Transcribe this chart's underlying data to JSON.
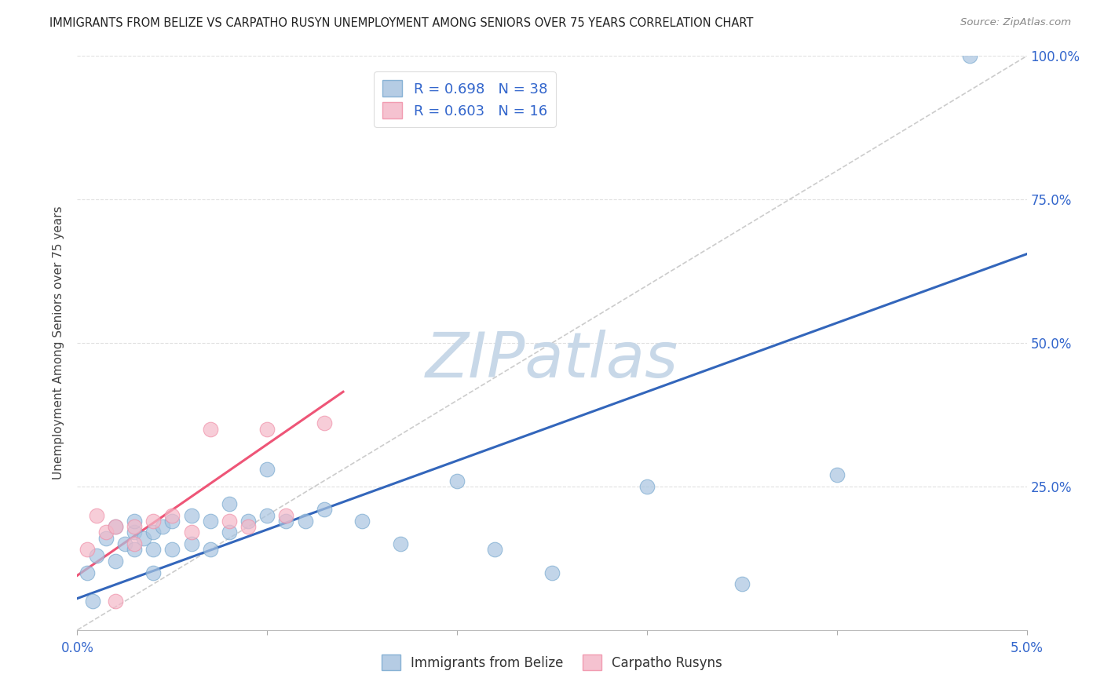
{
  "title": "IMMIGRANTS FROM BELIZE VS CARPATHO RUSYN UNEMPLOYMENT AMONG SENIORS OVER 75 YEARS CORRELATION CHART",
  "source": "Source: ZipAtlas.com",
  "ylabel": "Unemployment Among Seniors over 75 years",
  "xlim": [
    0,
    0.05
  ],
  "ylim": [
    0,
    1.0
  ],
  "xticks": [
    0.0,
    0.01,
    0.02,
    0.03,
    0.04,
    0.05
  ],
  "xtick_labels": [
    "0.0%",
    "",
    "",
    "",
    "",
    "5.0%"
  ],
  "ytick_labels": [
    "",
    "25.0%",
    "50.0%",
    "75.0%",
    "100.0%"
  ],
  "yticks": [
    0.0,
    0.25,
    0.5,
    0.75,
    1.0
  ],
  "legend_label1": "Immigrants from Belize",
  "legend_label2": "Carpatho Rusyns",
  "blue_fill": "#A8C4E0",
  "pink_fill": "#F4B8C8",
  "blue_edge": "#7AAAD0",
  "pink_edge": "#F090A8",
  "blue_line_color": "#3366BB",
  "pink_line_color": "#EE5577",
  "diagonal_color": "#CCCCCC",
  "watermark": "ZIPatlas",
  "watermark_color": "#C8D8E8",
  "blue_dots_x": [
    0.0005,
    0.001,
    0.0015,
    0.002,
    0.002,
    0.0025,
    0.003,
    0.003,
    0.003,
    0.0035,
    0.004,
    0.004,
    0.004,
    0.0045,
    0.005,
    0.005,
    0.006,
    0.006,
    0.007,
    0.007,
    0.008,
    0.008,
    0.009,
    0.01,
    0.01,
    0.011,
    0.012,
    0.013,
    0.015,
    0.017,
    0.02,
    0.022,
    0.025,
    0.03,
    0.035,
    0.04,
    0.047,
    0.0008
  ],
  "blue_dots_y": [
    0.1,
    0.13,
    0.16,
    0.18,
    0.12,
    0.15,
    0.17,
    0.19,
    0.14,
    0.16,
    0.17,
    0.14,
    0.1,
    0.18,
    0.19,
    0.14,
    0.2,
    0.15,
    0.19,
    0.14,
    0.22,
    0.17,
    0.19,
    0.28,
    0.2,
    0.19,
    0.19,
    0.21,
    0.19,
    0.15,
    0.26,
    0.14,
    0.1,
    0.25,
    0.08,
    0.27,
    1.0,
    0.05
  ],
  "pink_dots_x": [
    0.0005,
    0.001,
    0.0015,
    0.002,
    0.003,
    0.003,
    0.004,
    0.005,
    0.006,
    0.007,
    0.008,
    0.009,
    0.01,
    0.011,
    0.013,
    0.002
  ],
  "pink_dots_y": [
    0.14,
    0.2,
    0.17,
    0.18,
    0.18,
    0.15,
    0.19,
    0.2,
    0.17,
    0.35,
    0.19,
    0.18,
    0.35,
    0.2,
    0.36,
    0.05
  ],
  "blue_line_x": [
    0.0,
    0.05
  ],
  "blue_line_y": [
    0.055,
    0.655
  ],
  "pink_line_x": [
    0.0,
    0.014
  ],
  "pink_line_y": [
    0.095,
    0.415
  ],
  "diag_line_x": [
    0.0,
    0.05
  ],
  "diag_line_y": [
    0.0,
    1.0
  ],
  "grid_color": "#E0E0E0",
  "tick_color": "#3366CC",
  "title_color": "#222222",
  "source_color": "#888888",
  "ylabel_color": "#444444"
}
